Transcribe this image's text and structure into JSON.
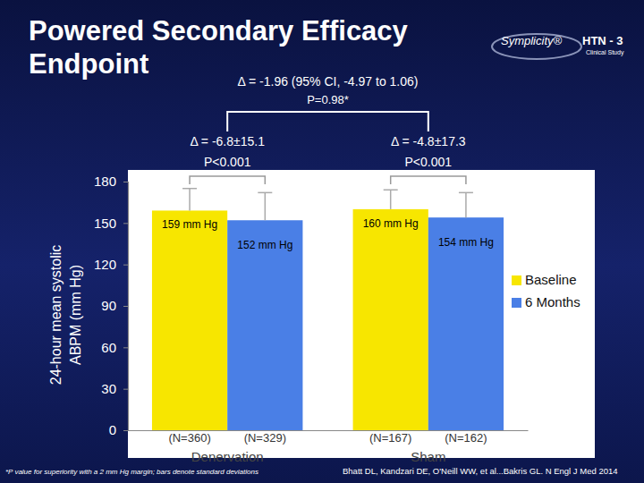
{
  "chart_data": {
    "type": "bar",
    "title": "Powered Secondary Efficacy Endpoint",
    "ylabel": [
      "24-hour mean systolic",
      "ABPM (mm Hg)"
    ],
    "categories": [
      "Denervation",
      "Sham"
    ],
    "series": [
      {
        "name": "Baseline",
        "color": "#f7e600",
        "values": [
          159,
          160
        ],
        "value_labels": [
          "159 mm Hg",
          "160 mm Hg"
        ],
        "errors": [
          16,
          14
        ],
        "n_labels": [
          "(N=360)",
          "(N=167)"
        ]
      },
      {
        "name": "6 Months",
        "color": "#4a7fe6",
        "values": [
          152,
          154
        ],
        "value_labels": [
          "152 mm Hg",
          "154 mm Hg"
        ],
        "errors": [
          20,
          18
        ],
        "n_labels": [
          "(N=329)",
          "(N=162)"
        ]
      }
    ],
    "ylim": [
      0,
      180
    ],
    "yticks": [
      0,
      30,
      60,
      90,
      120,
      150,
      180
    ],
    "grid": false,
    "legend": "right",
    "data_labels": true,
    "comparison": {
      "delta": "Δ = -1.96 (95% CI, -4.97 to 1.06)",
      "p": "P=0.98*"
    },
    "group_comparisons": [
      {
        "delta": "Δ = -6.8±15.1",
        "p": "P<0.001"
      },
      {
        "delta": "Δ = -4.8±17.3",
        "p": "P<0.001"
      }
    ],
    "footnote": "*P value for superiority with a 2 mm Hg margin; bars denote standard deviations",
    "source": "Bhatt DL, Kandzari DE, O'Neill WW, et al...Bakris GL. N Engl J Med 2014",
    "logo": {
      "brand": "Symplicity®",
      "study": "HTN - 3",
      "subtitle": "Clinical Study"
    }
  }
}
